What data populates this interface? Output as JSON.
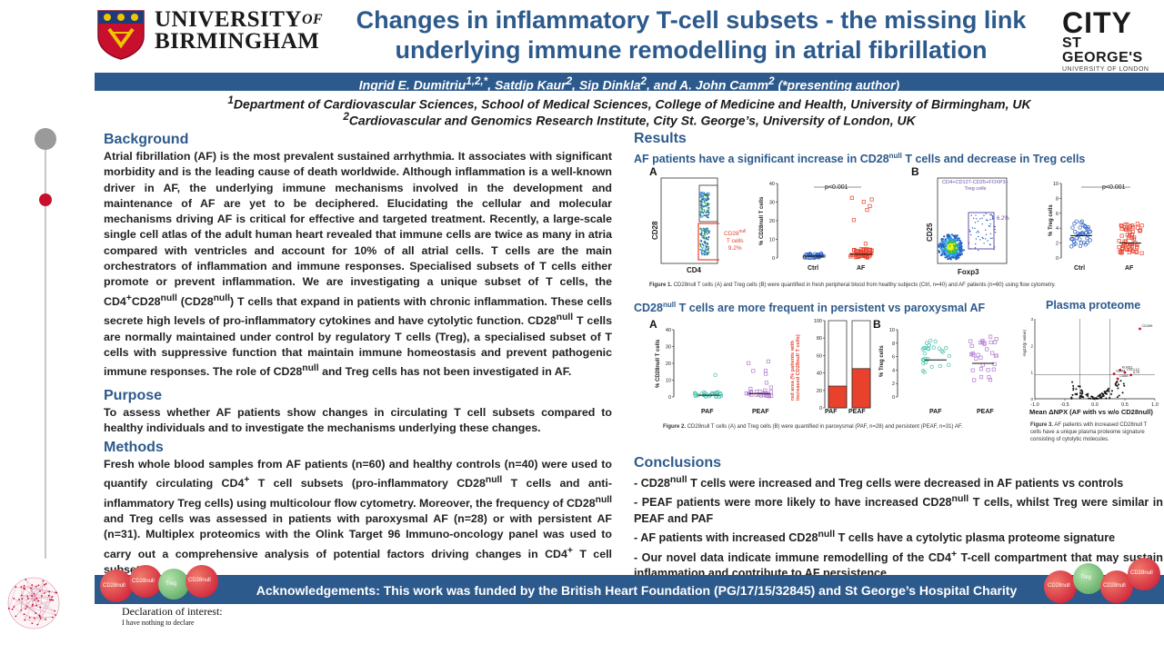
{
  "header": {
    "uob_line1": "UNIVERSITY",
    "uob_of": "OF",
    "uob_line2": "BIRMINGHAM",
    "title_line1": "Changes in inflammatory T-cell subsets - the missing link",
    "title_line2": "underlying immune remodelling in atrial fibrillation",
    "city_line1": "CITY",
    "city_line2": "ST GEORGE'S",
    "city_line3": "UNIVERSITY OF LONDON"
  },
  "authors": {
    "a1": "Ingrid E. Dumitriu",
    "a1_sup": "1,2,*",
    "a2": "Satdip Kaur",
    "a2_sup": "2",
    "a3": "Sip Dinkla",
    "a3_sup": "2",
    "a4": "and A. John Camm",
    "a4_sup": "2",
    "note": "(*presenting author)"
  },
  "affiliations": {
    "aff1_sup": "1",
    "aff1": "Department of Cardiovascular Sciences, School of Medical Sciences, College of Medicine and Health, University of Birmingham, UK",
    "aff2_sup": "2",
    "aff2": "Cardiovascular and Genomics Research Institute, City St. George’s, University of London, UK"
  },
  "background": {
    "heading": "Background",
    "t1": "Atrial fibrillation (AF) is the most prevalent sustained arrhythmia. It associates with significant morbidity and is the leading cause of death worldwide. Although inflammation is a well-known driver in AF, the underlying immune mechanisms involved in the development and maintenance of AF are yet to be deciphered. Elucidating the cellular and molecular mechanisms driving AF is critical for effective and targeted treatment. Recently, a large-scale single cell atlas of the adult human heart revealed that immune cells are twice as many in atria compared with ventricles and account for 10% of all atrial cells. T cells are the main orchestrators of inflammation and immune responses. Specialised subsets of T cells either promote or prevent inflammation. We are investigating a unique subset of T cells, the CD4",
    "t2": "CD28",
    "t3": "(CD28",
    "t4": ") T cells that expand in patients with chronic inflammation. These cells secrete high levels of pro-inflammatory cytokines and have cytolytic function. CD28",
    "t5": "T cells are normally maintained under control by regulatory T cells (Treg), a specialised subset of T cells with suppressive function that maintain immune homeostasis and prevent pathogenic immune responses. The role of CD28",
    "t6": "and Treg cells has not been investigated in AF.",
    "sup_plus": "+",
    "sup_null": "null"
  },
  "purpose": {
    "heading": "Purpose",
    "text": "To assess whether AF patients show changes in circulating T cell subsets compared to healthy individuals and to investigate the mechanisms underlying these changes."
  },
  "methods": {
    "heading": "Methods",
    "t1": "Fresh whole blood samples from AF patients (n=60) and healthy controls (n=40) were used to quantify circulating CD4",
    "t2": "T cell subsets (pro-inflammatory CD28",
    "t3": "T cells and anti-inflammatory Treg cells) using multicolour flow cytometry. Moreover, the frequency of CD28",
    "t4": "and Treg cells was assessed in patients with paroxysmal AF (n=28) or with persistent AF (n=31). Multiplex proteomics with the Olink Target 96 Immuno-oncology panel was used to carry out a comprehensive analysis of potential factors driving changes in CD4",
    "t5": "T cell subsets.",
    "sup_plus": "+",
    "sup_null": "null"
  },
  "results": {
    "heading": "Results",
    "sub1_a": "AF patients have a significant increase in CD28",
    "sub1_sup": "null",
    "sub1_b": "T cells and decrease in Treg cells",
    "fig1": {
      "panel_a": "A",
      "panel_b": "B",
      "a_xaxis": "CD4",
      "a_yaxis": "CD28",
      "a_gate_label_1": "CD28",
      "a_gate_label_sup": "null",
      "a_gate_label_2": "T cells",
      "a_gate_pct": "9.2%",
      "a_plot_ylabel": "% CD28null T cells",
      "a_yticks": [
        "40",
        "30",
        "20",
        "10",
        "0"
      ],
      "a_pval": "p<0.001",
      "a_groups": [
        "Ctrl",
        "AF"
      ],
      "b_xaxis": "Foxp3",
      "b_yaxis": "CD25",
      "b_gate_label": "CD4+CD127-CD25+FOXP3+",
      "b_gate_label2": "Treg cells",
      "b_gate_pct": "6.2%",
      "b_plot_ylabel": "% Treg cells",
      "b_yticks": [
        "10",
        "8",
        "6",
        "4",
        "2",
        "0"
      ],
      "b_pval": "p<0.001",
      "b_groups": [
        "Ctrl",
        "AF"
      ],
      "caption_bold": "Figure 1.",
      "caption": "CD28null T cells (A) and Treg cells (B) were quantified in fresh peripheral blood from healthy subjects (Ctrl, n=40) and AF patients (n=60) using flow cytometry."
    },
    "sub2_a": "CD28",
    "sub2_sup": "null",
    "sub2_b": "T cells are more frequent in persistent vs paroxysmal AF",
    "sub3": "Plasma proteome",
    "fig2": {
      "panel_a": "A",
      "panel_b": "B",
      "a_ylabel": "% CD28null T cells",
      "a_yticks": [
        "40",
        "30",
        "20",
        "10",
        "0"
      ],
      "a_groups": [
        "PAF",
        "PEAF"
      ],
      "bar_ylabel": "red area (% patients with increased CD28null T cells)",
      "bar_yticks": [
        "100",
        "80",
        "60",
        "40",
        "20",
        "0"
      ],
      "bar_groups": [
        "PAF",
        "PEAF"
      ],
      "bar_values": [
        25,
        45
      ],
      "b_ylabel": "% Treg cells",
      "b_yticks": [
        "10",
        "8",
        "6",
        "4",
        "2",
        "0"
      ],
      "b_groups": [
        "PAF",
        "PEAF"
      ],
      "caption_bold": "Figure 2.",
      "caption": "CD28null T cells (A) and Treg cells (B) were quantified in paroxysmal (PAF, n=28) and persistent (PEAF, n=31) AF."
    },
    "fig3": {
      "xlabel": "Mean ΔNPX (AF with vs w/o CD28null",
      "xlabel_end": ")",
      "xticks": [
        "-1.0",
        "-0.5",
        "0.0",
        "0.5",
        "1.0"
      ],
      "ylabel": "-log10(p value)",
      "labels": [
        "CD28H",
        "KLRD1",
        "GZMA",
        "CXCL13",
        "IL7R",
        "CD8A"
      ],
      "caption_bold": "Figure 3.",
      "caption": "AF patients with increased CD28null T cells have a unique plasma proteome signature consisting of cytolytic molecules."
    }
  },
  "conclusions": {
    "heading": "Conclusions",
    "c1_a": "- CD28",
    "c1_b": "T cells were increased and Treg cells were decreased in AF patients vs controls",
    "c2_a": "- PEAF patients were more likely to have increased CD28",
    "c2_b": "T cells, whilst Treg were similar in PEAF and PAF",
    "c3_a": "- AF patients with increased CD28",
    "c3_b": "T cells have a cytolytic plasma proteome signature",
    "c4_a": "- Our novel data indicate immune remodelling of the CD4",
    "c4_b": "T-cell compartment that may sustain inflammation and contribute to AF persistence",
    "sup_null": "null",
    "sup_plus": "+"
  },
  "footer": {
    "ack": "Acknowledgements: This work was funded by the British Heart Foundation (PG/17/15/32845) and St George’s Hospital Charity",
    "decl_title": "Declaration of interest:",
    "decl_body": "I have nothing to declare",
    "cell_labels": [
      "CD28null",
      "CD28null",
      "Treg",
      "CD28null"
    ]
  },
  "colors": {
    "accent": "#2d5a8c",
    "red": "#e8412c",
    "ctrl_blue": "#2a5fc0",
    "teal": "#3cbfa9",
    "violet": "#b07ad0"
  }
}
